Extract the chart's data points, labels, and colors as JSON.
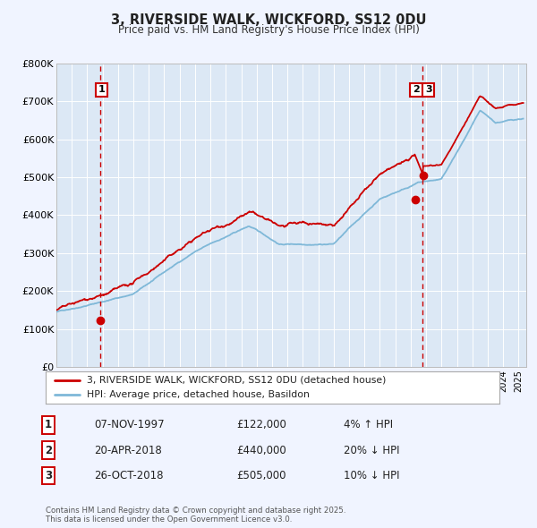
{
  "title": "3, RIVERSIDE WALK, WICKFORD, SS12 0DU",
  "subtitle": "Price paid vs. HM Land Registry's House Price Index (HPI)",
  "bg_color": "#f0f4ff",
  "plot_bg_color": "#dce8f5",
  "grid_color": "#ffffff",
  "red_line_label": "3, RIVERSIDE WALK, WICKFORD, SS12 0DU (detached house)",
  "blue_line_label": "HPI: Average price, detached house, Basildon",
  "red_color": "#cc0000",
  "blue_color": "#7fb8d8",
  "vline_color": "#cc0000",
  "ylim": [
    0,
    800000
  ],
  "yticks": [
    0,
    100000,
    200000,
    300000,
    400000,
    500000,
    600000,
    700000,
    800000
  ],
  "ytick_labels": [
    "£0",
    "£100K",
    "£200K",
    "£300K",
    "£400K",
    "£500K",
    "£600K",
    "£700K",
    "£800K"
  ],
  "sale1_x": 1997.85,
  "sale1_y": 122000,
  "sale2_x": 2018.3,
  "sale2_y": 440000,
  "sale3_x": 2018.82,
  "sale3_y": 505000,
  "vline1_x": 1997.85,
  "vline2_x": 2018.75,
  "table_rows": [
    {
      "num": "1",
      "date": "07-NOV-1997",
      "price": "£122,000",
      "hpi": "4% ↑ HPI"
    },
    {
      "num": "2",
      "date": "20-APR-2018",
      "price": "£440,000",
      "hpi": "20% ↓ HPI"
    },
    {
      "num": "3",
      "date": "26-OCT-2018",
      "price": "£505,000",
      "hpi": "10% ↓ HPI"
    }
  ],
  "footer": "Contains HM Land Registry data © Crown copyright and database right 2025.\nThis data is licensed under the Open Government Licence v3.0.",
  "xmin": 1995.0,
  "xmax": 2025.5
}
